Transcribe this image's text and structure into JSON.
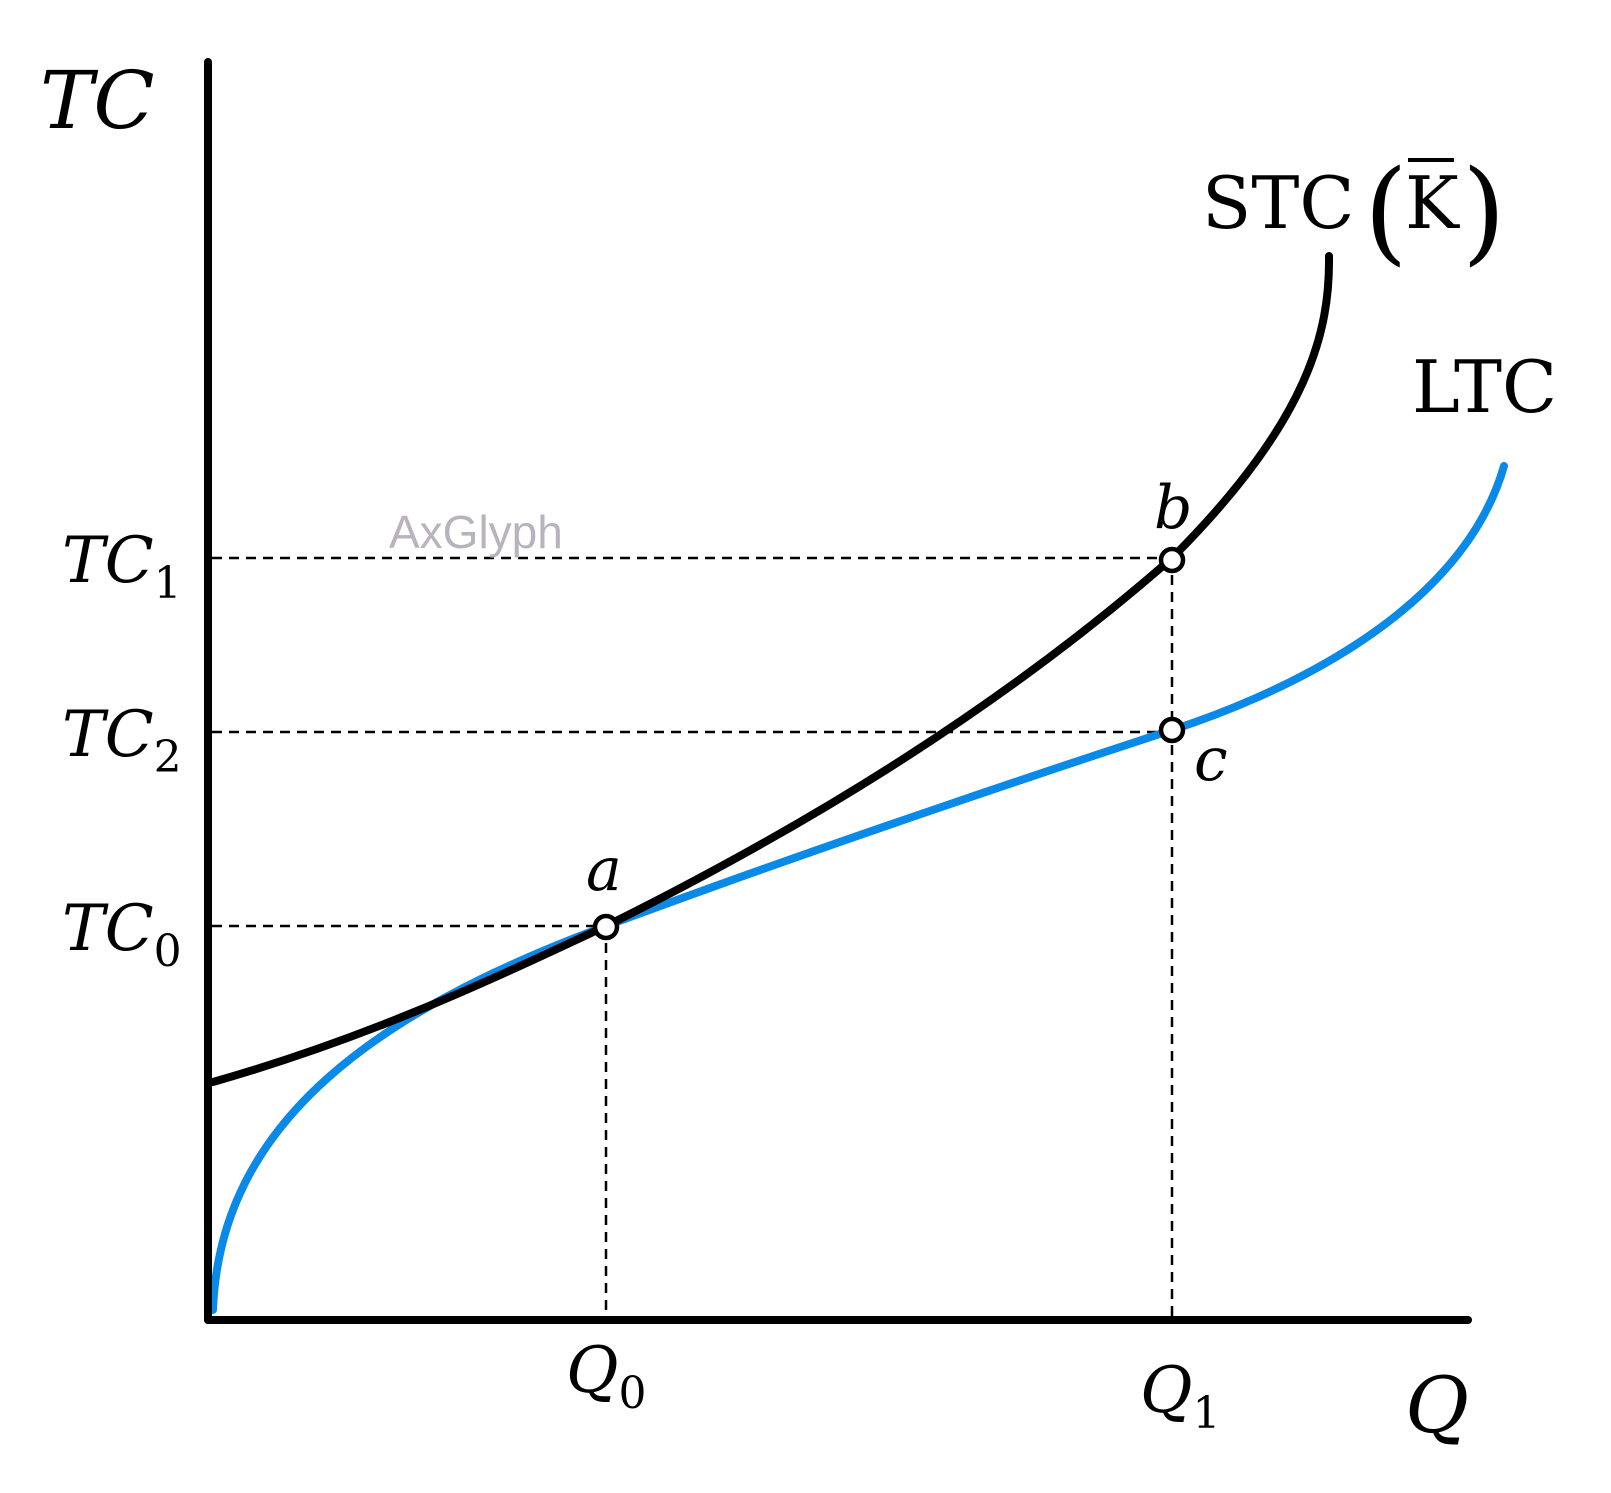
{
  "axes": {
    "y_label": "TC",
    "x_label": "Q"
  },
  "y_ticks": [
    {
      "base": "TC",
      "sub": "1"
    },
    {
      "base": "TC",
      "sub": "2"
    },
    {
      "base": "TC",
      "sub": "0"
    }
  ],
  "x_ticks": [
    {
      "base": "Q",
      "sub": "0"
    },
    {
      "base": "Q",
      "sub": "1"
    }
  ],
  "curves": {
    "stc": {
      "label_main": "STC",
      "label_capital": "K",
      "color": "#000000"
    },
    "ltc": {
      "label": "LTC",
      "color": "#0a8ae8"
    }
  },
  "points": {
    "a": "a",
    "b": "b",
    "c": "c"
  },
  "watermark": "AxGlyph"
}
